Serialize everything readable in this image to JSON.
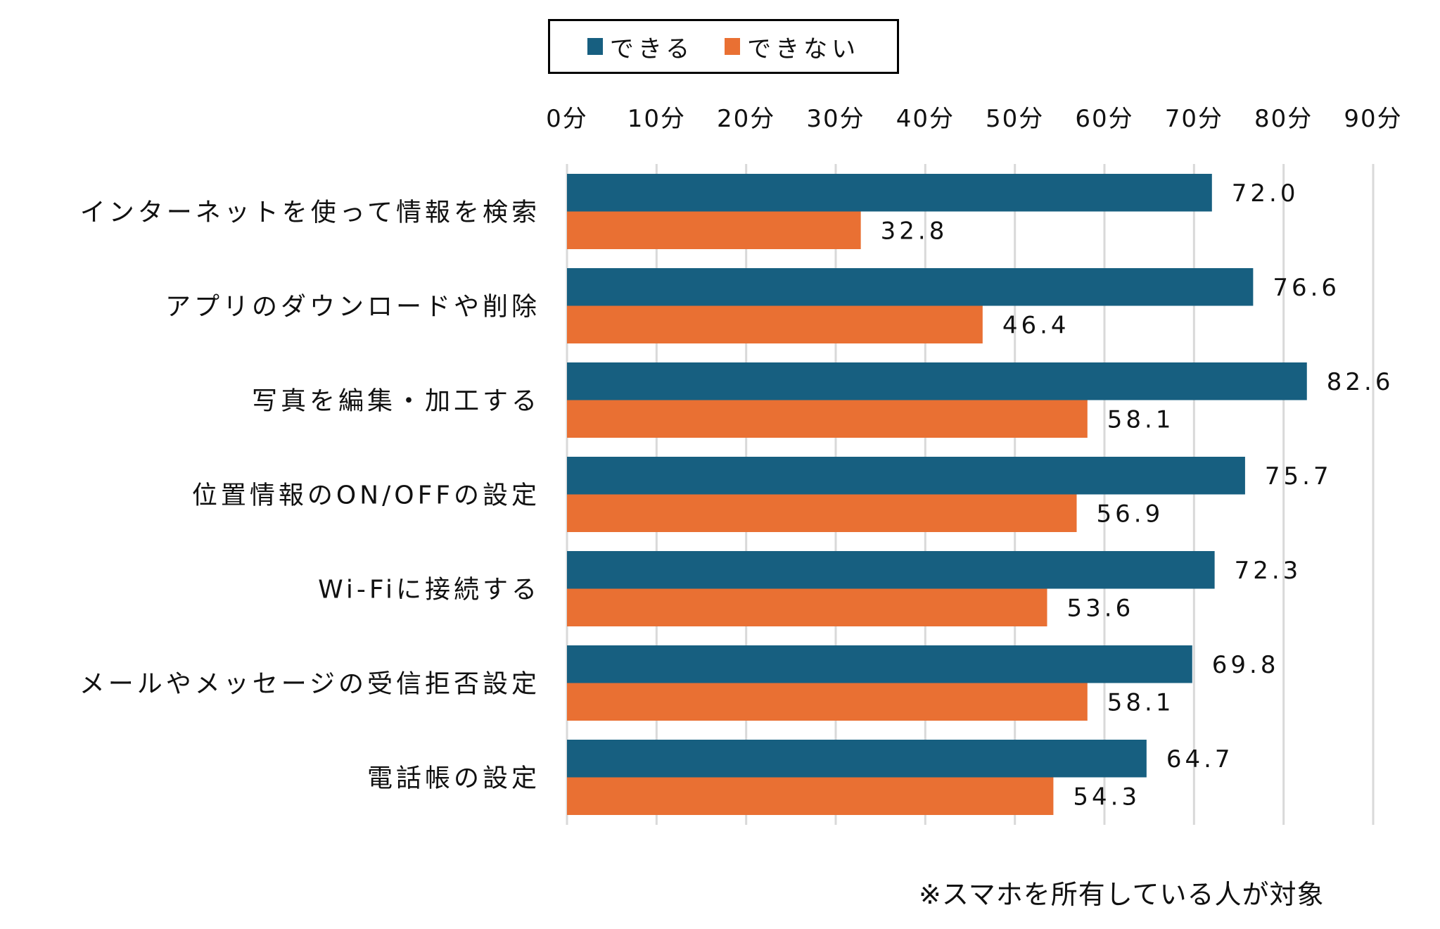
{
  "chart_data": {
    "type": "bar",
    "orientation": "horizontal",
    "title": "",
    "xlabel": "",
    "ylabel": "",
    "xlim": [
      0,
      90
    ],
    "tick_step": 10,
    "tick_labels": [
      "0分",
      "10分",
      "20分",
      "30分",
      "40分",
      "50分",
      "60分",
      "70分",
      "80分",
      "90分"
    ],
    "grid": true,
    "legend_position": "top",
    "categories": [
      "インターネットを使って情報を検索",
      "アプリのダウンロードや削除",
      "写真を編集・加工する",
      "位置情報のON/OFFの設定",
      "Wi-Fiに接続する",
      "メールやメッセージの受信拒否設定",
      "電話帳の設定"
    ],
    "series": [
      {
        "name": "できる",
        "color": "#175F80",
        "values": [
          72.0,
          76.6,
          82.6,
          75.7,
          72.3,
          69.8,
          64.7
        ],
        "labels": [
          "72.0",
          "76.6",
          "82.6",
          "75.7",
          "72.3",
          "69.8",
          "64.7"
        ]
      },
      {
        "name": "できない",
        "color": "#E97033",
        "values": [
          32.8,
          46.4,
          58.1,
          56.9,
          53.6,
          58.1,
          54.3
        ],
        "labels": [
          "32.8",
          "46.4",
          "58.1",
          "56.9",
          "53.6",
          "58.1",
          "54.3"
        ]
      }
    ],
    "footnote": "※スマホを所有している人が対象"
  },
  "legend": {
    "items": [
      {
        "label": "できる",
        "color": "#175F80"
      },
      {
        "label": "できない",
        "color": "#E97033"
      }
    ]
  },
  "colors": {
    "grid": "#D9D9D9",
    "text": "#111111",
    "background": "#FFFFFF"
  }
}
